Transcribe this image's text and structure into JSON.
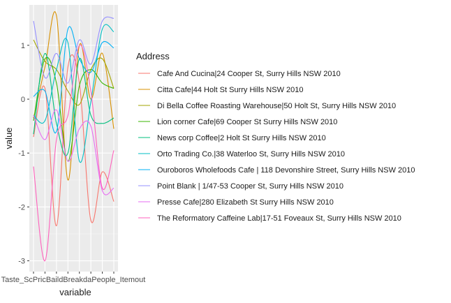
{
  "chart_data": {
    "type": "line",
    "xlabel": "variable",
    "ylabel": "value",
    "legend_title": "Address",
    "legend_position": "right",
    "grid": true,
    "ylim": [
      -3.2,
      1.75
    ],
    "y_ticks": [
      1,
      0,
      -1,
      -2,
      -3
    ],
    "x_tick_labels": "Taste_ScPricBaildBreakdaPeople_Itemout",
    "categories": [
      "1",
      "2",
      "3",
      "4",
      "5",
      "6",
      "7",
      "8"
    ],
    "series": [
      {
        "name": "Cafe And Cucina|24 Cooper St, Surry Hills NSW 2010",
        "color": "#F8766D",
        "values": [
          -0.7,
          0.2,
          -2.35,
          0.6,
          0.3,
          -2.25,
          -1.35,
          -1.9
        ]
      },
      {
        "name": "Citta Cafe|44 Holt St Surry Hills NSW 2010",
        "color": "#D89000",
        "values": [
          -0.35,
          0.6,
          1.55,
          -1.5,
          1.0,
          0.0,
          0.85,
          -0.55
        ]
      },
      {
        "name": "Di Bella Coffee Roasting Warehouse|50 Holt St, Surry Hills NSW 2010",
        "color": "#A3A500",
        "values": [
          1.1,
          0.7,
          0.55,
          0.15,
          -0.1,
          0.55,
          0.75,
          0.2
        ]
      },
      {
        "name": "Lion corner Cafe|69 Cooper St Surry Hills NSW 2010",
        "color": "#39B600",
        "values": [
          -0.4,
          0.75,
          0.3,
          -1.15,
          0.25,
          0.55,
          0.3,
          0.2
        ]
      },
      {
        "name": "News corp Coffee|2 Holt St Surry Hills NSW 2010",
        "color": "#00BF7D",
        "values": [
          -0.65,
          0.85,
          -0.45,
          -1.0,
          0.75,
          -0.3,
          -0.45,
          -0.35
        ]
      },
      {
        "name": "Orto Trading Co.|38 Waterloo St, Surry Hills NSW 2010",
        "color": "#00BFC4",
        "values": [
          -0.3,
          -0.4,
          0.55,
          1.05,
          -1.15,
          -0.05,
          1.3,
          1.25
        ]
      },
      {
        "name": "Ouroboros Wholefoods Cafe | 118 Devonshire Street, Surry Hills NSW 2010",
        "color": "#00B0F6",
        "values": [
          0.05,
          0.15,
          -0.6,
          1.3,
          0.75,
          0.5,
          1.05,
          0.95
        ]
      },
      {
        "name": "Point Blank | 1/47-53 Cooper St, Surry Hills NSW 2010",
        "color": "#9590FF",
        "values": [
          1.45,
          0.4,
          0.85,
          0.3,
          1.1,
          0.65,
          1.45,
          1.5
        ]
      },
      {
        "name": "Presse Cafe|280 Elizabeth St Surry Hills NSW 2010",
        "color": "#E76BF3",
        "values": [
          -0.3,
          -0.75,
          -0.2,
          -1.15,
          -0.55,
          -0.5,
          -1.7,
          -1.65
        ]
      },
      {
        "name": "The Reformatory Caffeine Lab|17-51 Foveaux St, Surry Hills NSW 2010",
        "color": "#FF62BC",
        "values": [
          -1.25,
          -3.0,
          -0.75,
          -0.3,
          1.0,
          0.15,
          -1.65,
          -0.95
        ]
      }
    ]
  }
}
